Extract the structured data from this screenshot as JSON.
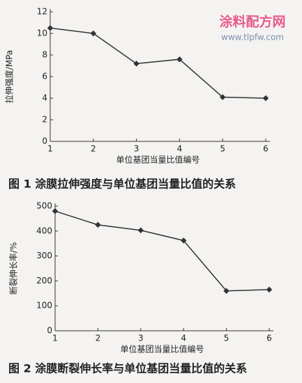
{
  "watermark": {
    "name": "涂料配方网",
    "url": "www.tlpfw.com"
  },
  "chart_data": [
    {
      "type": "line",
      "caption": "图 1   涂膜拉伸强度与单位基团当量比值的关系",
      "x_label": "单位基团当量比值编号",
      "y_label": "拉伸强度/MPa",
      "x": [
        1,
        2,
        3,
        4,
        5,
        6
      ],
      "xlim": [
        1,
        6
      ],
      "xticks": [
        1,
        2,
        3,
        4,
        5,
        6
      ],
      "ylim": [
        0,
        12
      ],
      "yticks": [
        0,
        2,
        4,
        6,
        8,
        10,
        12
      ],
      "series": [
        {
          "color": "#333333",
          "values": [
            10.5,
            10,
            7.2,
            7.6,
            4.1,
            4.0
          ]
        }
      ]
    },
    {
      "type": "line",
      "caption": "图 2   涂膜断裂伸长率与单位基团当量比值的关系",
      "x_label": "单位基团当量比值编号",
      "y_label": "断裂伸长率/%",
      "x": [
        1,
        2,
        3,
        4,
        5,
        6
      ],
      "xlim": [
        1,
        6
      ],
      "xticks": [
        1,
        2,
        3,
        4,
        5,
        6
      ],
      "ylim": [
        0,
        500
      ],
      "yticks": [
        0,
        100,
        200,
        300,
        400,
        500
      ],
      "series": [
        {
          "color": "#333333",
          "values": [
            480,
            425,
            403,
            362,
            160,
            165
          ]
        }
      ]
    }
  ]
}
